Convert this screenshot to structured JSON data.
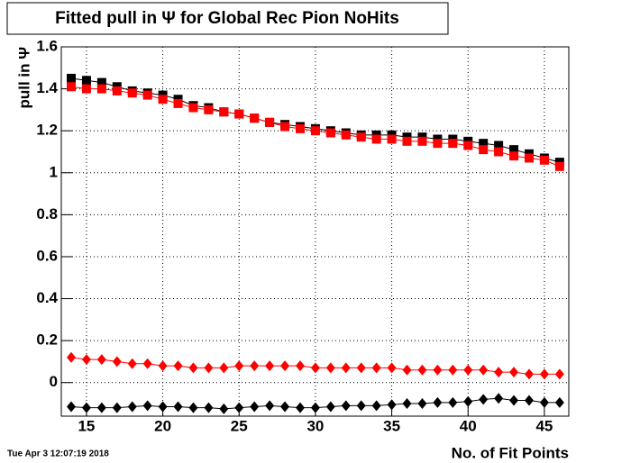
{
  "chart_data": {
    "type": "scatter",
    "title": "Fitted pull in Ψ  for Global Rec Pion NoHits",
    "x_label": "No. of Fit Points",
    "y_label": "pull in Ψ",
    "date_stamp": "Tue Apr  3 12:07:19 2018",
    "x": [
      14,
      15,
      16,
      17,
      18,
      19,
      20,
      21,
      22,
      23,
      24,
      25,
      26,
      27,
      28,
      29,
      30,
      31,
      32,
      33,
      34,
      35,
      36,
      37,
      38,
      39,
      40,
      41,
      42,
      43,
      44,
      45,
      46
    ],
    "xlim": [
      13.35,
      46.6
    ],
    "xticks": [
      15,
      20,
      25,
      30,
      35,
      40,
      45
    ],
    "ylim": [
      -0.16,
      1.6
    ],
    "yticks": [
      0,
      0.2,
      0.4,
      0.6,
      0.8,
      1,
      1.2,
      1.4,
      1.6
    ],
    "grid": true,
    "series": [
      {
        "color": "#000000",
        "marker": "square",
        "values": [
          1.45,
          1.44,
          1.43,
          1.41,
          1.39,
          1.38,
          1.37,
          1.35,
          1.32,
          1.31,
          1.29,
          1.28,
          1.26,
          1.24,
          1.23,
          1.22,
          1.21,
          1.2,
          1.19,
          1.18,
          1.18,
          1.18,
          1.17,
          1.17,
          1.16,
          1.16,
          1.15,
          1.14,
          1.13,
          1.11,
          1.09,
          1.07,
          1.05
        ]
      },
      {
        "color": "#ff0000",
        "marker": "square",
        "values": [
          1.41,
          1.4,
          1.4,
          1.39,
          1.38,
          1.37,
          1.35,
          1.33,
          1.31,
          1.3,
          1.29,
          1.28,
          1.26,
          1.24,
          1.22,
          1.21,
          1.2,
          1.19,
          1.18,
          1.17,
          1.16,
          1.16,
          1.15,
          1.15,
          1.14,
          1.14,
          1.13,
          1.11,
          1.1,
          1.08,
          1.07,
          1.06,
          1.03
        ]
      },
      {
        "color": "#ff0000",
        "marker": "diamond",
        "values": [
          0.12,
          0.11,
          0.11,
          0.1,
          0.09,
          0.09,
          0.08,
          0.08,
          0.07,
          0.07,
          0.07,
          0.08,
          0.08,
          0.08,
          0.08,
          0.08,
          0.07,
          0.07,
          0.07,
          0.07,
          0.07,
          0.07,
          0.06,
          0.06,
          0.06,
          0.06,
          0.06,
          0.06,
          0.05,
          0.05,
          0.04,
          0.04,
          0.04
        ]
      },
      {
        "color": "#000000",
        "marker": "diamond",
        "values": [
          -0.115,
          -0.12,
          -0.12,
          -0.12,
          -0.115,
          -0.11,
          -0.115,
          -0.115,
          -0.12,
          -0.12,
          -0.125,
          -0.12,
          -0.115,
          -0.11,
          -0.115,
          -0.12,
          -0.12,
          -0.115,
          -0.11,
          -0.11,
          -0.11,
          -0.105,
          -0.1,
          -0.1,
          -0.095,
          -0.095,
          -0.09,
          -0.08,
          -0.075,
          -0.085,
          -0.085,
          -0.095,
          -0.095
        ]
      }
    ]
  }
}
